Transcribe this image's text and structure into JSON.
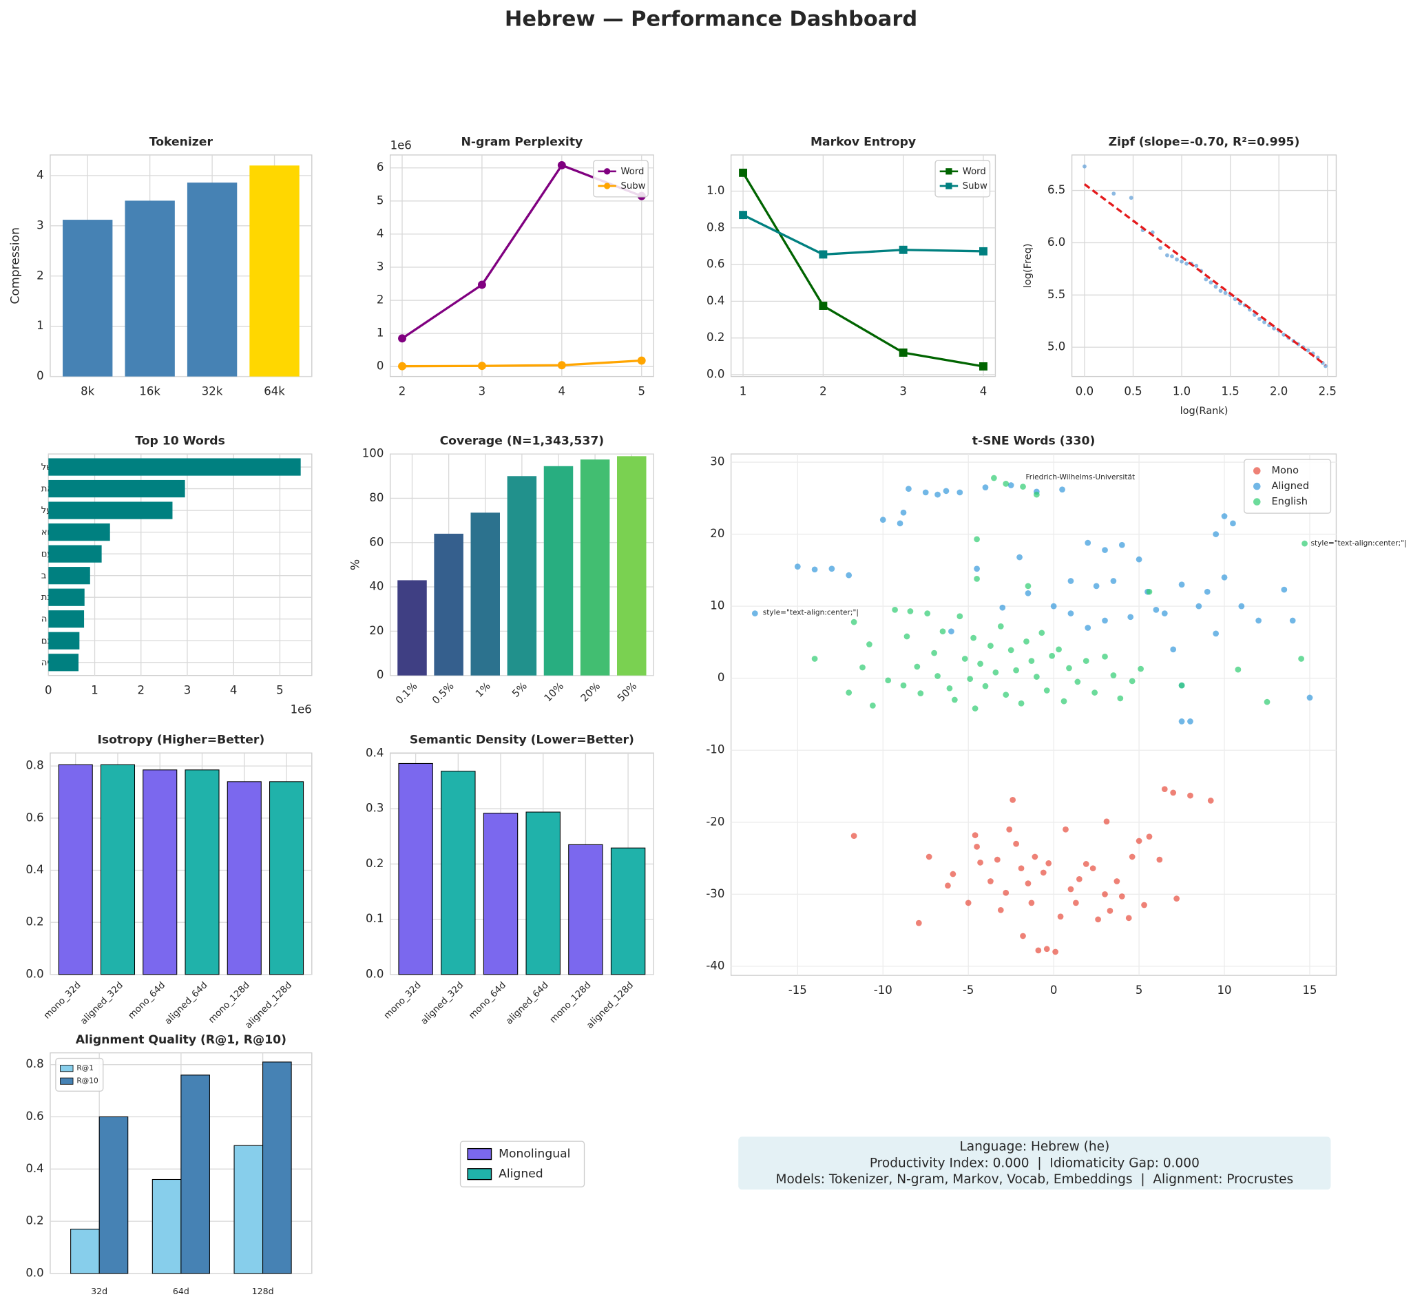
{
  "title": "Hebrew — Performance Dashboard",
  "chart_data": [
    {
      "type": "bar",
      "title": "Tokenizer",
      "categories": [
        "8k",
        "16k",
        "32k",
        "64k"
      ],
      "values": [
        3.12,
        3.5,
        3.86,
        4.2
      ],
      "colors": [
        "#4682b4",
        "#4682b4",
        "#4682b4",
        "#ffd700"
      ],
      "ylabel": "Compression",
      "ylim": [
        0,
        4.41
      ],
      "yticks": [
        0,
        1,
        2,
        3,
        4
      ],
      "grid": true
    },
    {
      "type": "line",
      "title": "N-gram Perplexity",
      "x": [
        2,
        3,
        4,
        5
      ],
      "xlim": [
        1.85,
        5.15
      ],
      "xticks": [
        2,
        3,
        4,
        5
      ],
      "ylim": [
        -0.3,
        6.39
      ],
      "yticks": [
        0,
        1,
        2,
        3,
        4,
        5,
        6
      ],
      "y_offset_label": "1e6",
      "grid": true,
      "legend": "upper right",
      "series": [
        {
          "name": "Word",
          "color": "#800080",
          "marker": "circle",
          "values": [
            0.85,
            2.47,
            6.08,
            5.15
          ]
        },
        {
          "name": "Subw",
          "color": "#ffa500",
          "marker": "circle",
          "values": [
            0.01,
            0.02,
            0.04,
            0.18
          ]
        }
      ]
    },
    {
      "type": "line",
      "title": "Markov Entropy",
      "x": [
        1,
        2,
        3,
        4
      ],
      "xlim": [
        0.85,
        4.15
      ],
      "xticks": [
        1,
        2,
        3,
        4
      ],
      "ylim": [
        -0.01,
        1.197
      ],
      "yticks": [
        {
          "value": 0,
          "label": "0.0"
        },
        0.2,
        0.4,
        0.6,
        0.8,
        {
          "value": 1,
          "label": "1.0"
        }
      ],
      "grid": true,
      "legend": "upper right",
      "series": [
        {
          "name": "Word",
          "color": "#006400",
          "marker": "square",
          "values": [
            1.1,
            0.375,
            0.12,
            0.045
          ]
        },
        {
          "name": "Subw",
          "color": "#008080",
          "marker": "square",
          "values": [
            0.87,
            0.655,
            0.68,
            0.672
          ]
        }
      ]
    },
    {
      "type": "scatter",
      "title": "Zipf (slope=-0.70, R²=0.995)",
      "xlabel": "log(Rank)",
      "ylabel": "log(Freq)",
      "xlim": [
        -0.13,
        2.59
      ],
      "xticks": [
        {
          "value": 0,
          "label": "0.0"
        },
        0.5,
        {
          "value": 1,
          "label": "1.0"
        },
        1.5,
        {
          "value": 2,
          "label": "2.0"
        },
        2.5
      ],
      "ylim": [
        4.72,
        6.84
      ],
      "yticks": [
        {
          "value": 5,
          "label": "5.0"
        },
        5.5,
        {
          "value": 6,
          "label": "6.0"
        },
        6.5
      ],
      "grid": true,
      "point_size": 2.2,
      "series": [
        {
          "color": "#5b9bd5",
          "x": [
            0,
            0.3,
            0.48,
            0.6,
            0.7,
            0.78,
            0.85,
            0.9,
            0.95,
            1.0,
            1.05,
            1.1,
            1.15,
            1.2,
            1.25,
            1.3,
            1.35,
            1.4,
            1.45,
            1.5,
            1.55,
            1.6,
            1.65,
            1.7,
            1.75,
            1.8,
            1.85,
            1.9,
            1.95,
            2.0,
            2.05,
            2.1,
            2.15,
            2.2,
            2.25,
            2.3,
            2.35,
            2.4,
            2.45,
            2.48
          ],
          "values": [
            6.73,
            6.47,
            6.43,
            6.12,
            6.1,
            5.95,
            5.88,
            5.87,
            5.84,
            5.82,
            5.8,
            5.8,
            5.78,
            5.73,
            5.65,
            5.62,
            5.58,
            5.54,
            5.52,
            5.5,
            5.46,
            5.42,
            5.4,
            5.36,
            5.31,
            5.27,
            5.24,
            5.21,
            5.18,
            5.16,
            5.12,
            5.09,
            5.06,
            5.03,
            5.0,
            4.97,
            4.94,
            4.9,
            4.85,
            4.82
          ]
        }
      ],
      "fit": {
        "color": "#e41a1c",
        "x": [
          0,
          2.48
        ],
        "values": [
          6.56,
          4.83
        ]
      }
    },
    {
      "type": "barh",
      "title": "Top 10 Words",
      "categories": [
        "של",
        "את",
        "על",
        "הוא",
        "עם",
        "ב",
        "בשנת",
        "ה",
        "גם",
        "היה"
      ],
      "values": [
        5.45,
        2.95,
        2.68,
        1.33,
        1.15,
        0.9,
        0.78,
        0.77,
        0.67,
        0.65
      ],
      "color": "#008080",
      "xlim": [
        0,
        5.69
      ],
      "xticks": [
        0,
        1,
        2,
        3,
        4,
        5
      ],
      "x_offset_label": "1e6",
      "grid": true
    },
    {
      "type": "bar",
      "title": "Coverage (N=1,343,537)",
      "categories": [
        "0.1%",
        "0.5%",
        "1%",
        "5%",
        "10%",
        "20%",
        "50%"
      ],
      "values": [
        43,
        64,
        73.5,
        90,
        94.5,
        97.5,
        99
      ],
      "colors": [
        "#3f3f83",
        "#355f8d",
        "#2c728e",
        "#21918c",
        "#28ae80",
        "#42be71",
        "#7ad151"
      ],
      "ylabel": "%",
      "ylim": [
        0,
        100
      ],
      "yticks": [
        0,
        20,
        40,
        60,
        80,
        100
      ],
      "grid": true,
      "rotate_labels": 45
    },
    {
      "type": "scatter",
      "title": "t-SNE Words (330)",
      "xlim": [
        -18.9,
        16.55
      ],
      "xticks": [
        -15,
        -10,
        -5,
        0,
        5,
        10,
        15
      ],
      "ylim": [
        -41.27,
        31.14
      ],
      "yticks": [
        -40,
        -30,
        -20,
        -10,
        0,
        10,
        20,
        30
      ],
      "grid": true,
      "legend": "upper right",
      "point_size": 3.3,
      "series": [
        {
          "name": "Mono",
          "color": "#e74c3c",
          "x": [
            -7.3,
            -6.2,
            -5.9,
            -5.0,
            -4.6,
            -4.5,
            -4.3,
            -3.7,
            -3.3,
            -3.1,
            -2.8,
            -2.6,
            -2.4,
            -2.2,
            -1.9,
            -1.5,
            -1.3,
            -1.1,
            -0.9,
            -0.6,
            -0.3,
            0.1,
            0.4,
            0.7,
            1.0,
            1.3,
            1.5,
            1.9,
            2.3,
            2.6,
            3.0,
            3.3,
            3.7,
            4.0,
            4.4,
            4.6,
            5.0,
            5.3,
            5.6,
            6.2,
            6.5,
            7.0,
            7.2,
            8.0,
            9.2,
            -11.7,
            -7.9,
            3.1,
            -0.4,
            -1.8
          ],
          "values": [
            -24.8,
            -28.8,
            -27.2,
            -31.2,
            -21.8,
            -23.4,
            -25.6,
            -28.2,
            -25.2,
            -32.2,
            -29.8,
            -21,
            -16.9,
            -23,
            -26.4,
            -28.5,
            -31.2,
            -24.8,
            -37.8,
            -27,
            -25.7,
            -38,
            -33.1,
            -21,
            -29.3,
            -31.2,
            -27.9,
            -25.8,
            -26.4,
            -33.5,
            -30,
            -32.3,
            -28.2,
            -30.3,
            -33.3,
            -24.8,
            -22.6,
            -31.5,
            -22,
            -25.2,
            -15.4,
            -15.9,
            -30.6,
            -16.3,
            -17,
            -21.9,
            -34,
            -19.9,
            -37.6,
            -35.8
          ]
        },
        {
          "name": "Aligned",
          "color": "#3498db",
          "x": [
            -8.5,
            -7.5,
            -6.8,
            -6.3,
            -5.5,
            -4,
            -2.5,
            -1,
            0.5,
            -8.8,
            -10,
            -9,
            -15,
            -14,
            -13,
            -12,
            -17.5,
            2,
            3,
            4,
            5,
            -2,
            1,
            2.5,
            3.5,
            5.5,
            7.5,
            9,
            10,
            11,
            12,
            13.5,
            14,
            9.5,
            7,
            6,
            4.5,
            -1.5,
            0,
            -4.5,
            -6,
            -3,
            7.5,
            8,
            7.5,
            15,
            8.5,
            6.5,
            10,
            10.5,
            9.5,
            3,
            1,
            2
          ],
          "values": [
            26.3,
            25.8,
            25.5,
            26,
            25.8,
            26.5,
            26.8,
            25.9,
            26.2,
            23,
            22,
            21.5,
            15.5,
            15.1,
            15.2,
            14.3,
            9,
            18.8,
            17.8,
            18.5,
            16.5,
            16.8,
            13.5,
            12.8,
            13.5,
            12,
            13,
            12,
            14,
            10,
            8,
            12.3,
            8,
            6.2,
            4,
            9.5,
            8.5,
            11.8,
            10,
            15.2,
            6.5,
            9.8,
            -6,
            -6,
            -1,
            -2.7,
            10,
            9,
            22.5,
            21.5,
            20,
            8,
            9,
            7
          ]
        },
        {
          "name": "English",
          "color": "#2ecc71",
          "x": [
            -12,
            -11.2,
            -10.6,
            -10.8,
            -9.7,
            -9.3,
            -8.8,
            -8.6,
            -8.4,
            -8,
            -7.8,
            -7.4,
            -7,
            -6.8,
            -6.5,
            -6.1,
            -5.8,
            -5.5,
            -5.2,
            -4.9,
            -4.7,
            -4.6,
            -4.3,
            -4,
            -3.7,
            -3.4,
            -3.1,
            -2.8,
            -2.5,
            -2.2,
            -1.9,
            -1.6,
            -1.3,
            -1,
            -0.7,
            -0.4,
            -0.1,
            0.3,
            0.6,
            0.9,
            1.4,
            1.9,
            2.4,
            3,
            3.5,
            3.9,
            4.6,
            5.1,
            5.6,
            -14,
            -11.7,
            14.5,
            12.5,
            10.8,
            -4.5,
            -4.5,
            -1.5,
            14.7,
            -3.5,
            -1,
            -2.8,
            -1.8,
            7.5
          ],
          "values": [
            -2,
            1.5,
            -3.8,
            4.7,
            -0.3,
            9.5,
            -1,
            5.8,
            9.3,
            1.6,
            -2.1,
            9,
            3.5,
            0.3,
            6.5,
            -1.4,
            -3,
            8.6,
            2.7,
            -0.1,
            5.6,
            -4.2,
            2,
            -1.1,
            4.5,
            0.8,
            7.2,
            -2.3,
            3.9,
            1.1,
            -3.5,
            5.1,
            2.4,
            0.2,
            6.3,
            -1.7,
            3.1,
            4,
            -3.2,
            1.4,
            -0.5,
            2.4,
            -2,
            3,
            0.4,
            -2.8,
            -0.4,
            1.3,
            12,
            2.7,
            7.8,
            2.7,
            -3.3,
            1.2,
            19.3,
            13.8,
            12.8,
            18.7,
            27.8,
            25.5,
            27,
            26.6,
            -1
          ]
        }
      ],
      "annotations": [
        {
          "text": "style=\"text-align:center;\"|",
          "x": -17.2,
          "y": 9.1,
          "color": "#3498db"
        },
        {
          "text": "style=\"text-align:center;\"|",
          "x": 14.9,
          "y": 18.7,
          "color": "#2ecc71"
        },
        {
          "text": "Friedrich-Wilhelms-Universität",
          "x": -1.8,
          "y": 27.9,
          "color": "#2ecc71"
        }
      ]
    },
    {
      "type": "bar",
      "title": "Isotropy (Higher=Better)",
      "categories": [
        "mono_32d",
        "aligned_32d",
        "mono_64d",
        "aligned_64d",
        "mono_128d",
        "aligned_128d"
      ],
      "values": [
        0.805,
        0.805,
        0.785,
        0.785,
        0.74,
        0.74
      ],
      "colors": [
        "#7b68ee",
        "#20b2aa",
        "#7b68ee",
        "#20b2aa",
        "#7b68ee",
        "#20b2aa"
      ],
      "edgecolor": "#000000",
      "ylim": [
        0,
        0.85
      ],
      "yticks": [
        {
          "value": 0,
          "label": "0.0"
        },
        0.2,
        0.4,
        0.6,
        0.8
      ],
      "grid": true,
      "rotate_labels": 45
    },
    {
      "type": "bar",
      "title": "Semantic Density (Lower=Better)",
      "categories": [
        "mono_32d",
        "aligned_32d",
        "mono_64d",
        "aligned_64d",
        "mono_128d",
        "aligned_128d"
      ],
      "values": [
        0.382,
        0.368,
        0.292,
        0.294,
        0.235,
        0.229
      ],
      "colors": [
        "#7b68ee",
        "#20b2aa",
        "#7b68ee",
        "#20b2aa",
        "#7b68ee",
        "#20b2aa"
      ],
      "edgecolor": "#000000",
      "ylim": [
        0,
        0.401
      ],
      "yticks": [
        {
          "value": 0,
          "label": "0.0"
        },
        0.1,
        0.2,
        0.3,
        0.4
      ],
      "grid": true,
      "rotate_labels": 45
    },
    {
      "type": "grouped_bar",
      "title": "Alignment Quality (R@1, R@10)",
      "categories": [
        "32d",
        "64d",
        "128d"
      ],
      "edgecolor": "#000000",
      "ylim": [
        0,
        0.845
      ],
      "yticks": [
        {
          "value": 0,
          "label": "0.0"
        },
        0.2,
        0.4,
        0.6,
        0.8
      ],
      "grid": true,
      "legend": "upper left",
      "series": [
        {
          "name": "R@1",
          "color": "#87ceeb",
          "values": [
            0.17,
            0.36,
            0.49
          ]
        },
        {
          "name": "R@10",
          "color": "#4682b4",
          "values": [
            0.6,
            0.76,
            0.81
          ]
        }
      ]
    }
  ],
  "shared_legend": [
    {
      "name": "Monolingual",
      "color": "#7b68ee"
    },
    {
      "name": "Aligned",
      "color": "#20b2aa"
    }
  ],
  "info": [
    "Language: Hebrew (he)",
    "Productivity Index: 0.000  |  Idiomaticity Gap: 0.000",
    "Models: Tokenizer, N-gram, Markov, Vocab, Embeddings  |  Alignment: Procrustes"
  ]
}
